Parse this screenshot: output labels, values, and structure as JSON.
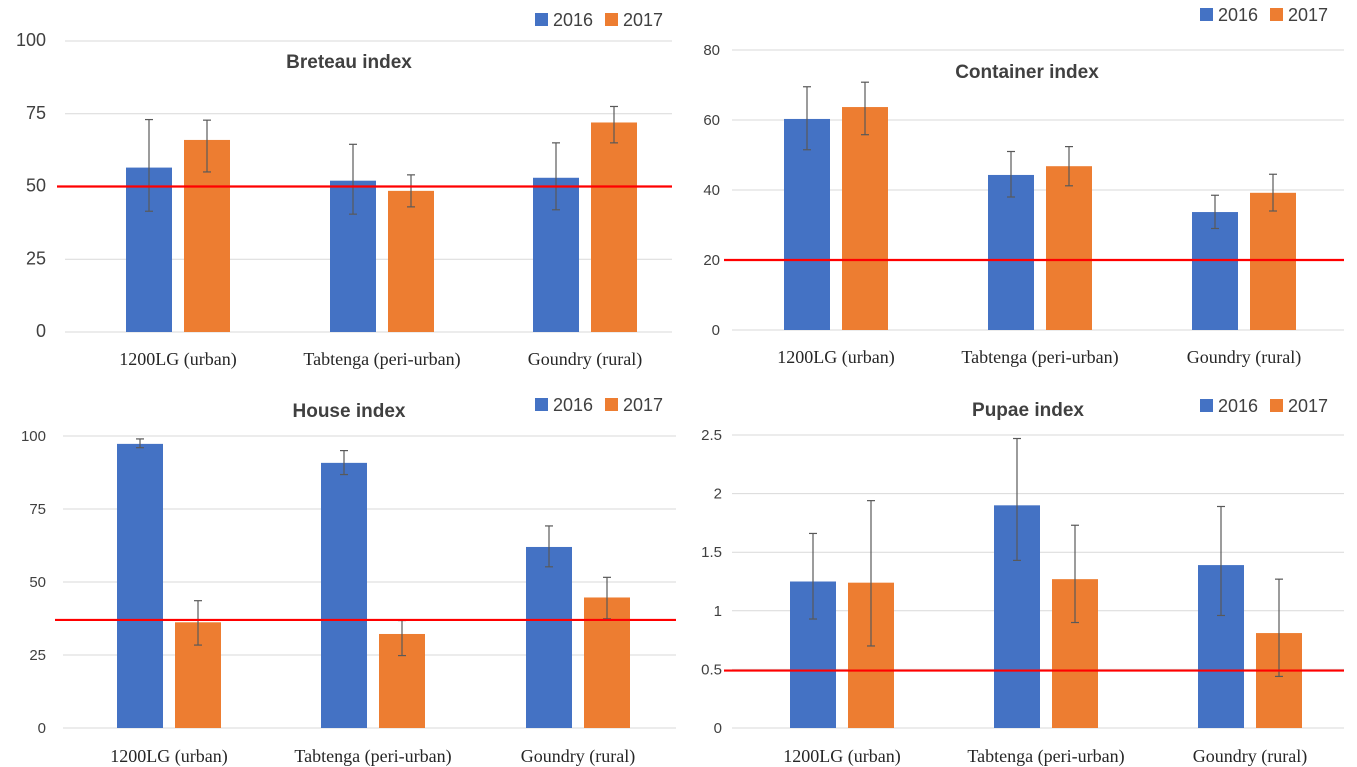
{
  "colors": {
    "2016": "#4472C4",
    "2017": "#ED7D31",
    "threshold": "#FF0000",
    "grid": "#D9D9D9",
    "errorbar": "#595959"
  },
  "legend": {
    "series_2016": "2016",
    "series_2017": "2017"
  },
  "chart_data": [
    {
      "type": "bar",
      "title": "Breteau index",
      "categories": [
        "1200LG (urban)",
        "Tabtenga (peri-urban)",
        "Goundry (rural)"
      ],
      "series": [
        {
          "name": "2016",
          "values": [
            56.5,
            52,
            53
          ],
          "error_low": [
            41.5,
            40.5,
            42
          ],
          "error_high": [
            73,
            64.5,
            65
          ]
        },
        {
          "name": "2017",
          "values": [
            66,
            48.5,
            72
          ],
          "error_low": [
            55,
            43,
            65
          ],
          "error_high": [
            72.8,
            54,
            77.5
          ]
        }
      ],
      "ylim": [
        0,
        100
      ],
      "yticks": [
        "0",
        "25",
        "50",
        "75",
        "100"
      ],
      "threshold": 50,
      "grid": true,
      "legend_position": "top-right"
    },
    {
      "type": "bar",
      "title": "Container index",
      "categories": [
        "1200LG (urban)",
        "Tabtenga (peri-urban)",
        "Goundry (rural)"
      ],
      "series": [
        {
          "name": "2016",
          "values": [
            60.3,
            44.3,
            33.7
          ],
          "error_low": [
            51.5,
            38,
            29
          ],
          "error_high": [
            69.5,
            51,
            38.5
          ]
        },
        {
          "name": "2017",
          "values": [
            63.7,
            46.8,
            39.2
          ],
          "error_low": [
            55.8,
            41.2,
            34
          ],
          "error_high": [
            70.8,
            52.4,
            44.5
          ]
        }
      ],
      "ylim": [
        0,
        80
      ],
      "yticks": [
        "0",
        "20",
        "40",
        "60",
        "80"
      ],
      "threshold": 20,
      "grid": true,
      "legend_position": "top-right"
    },
    {
      "type": "bar",
      "title": "House index",
      "categories": [
        "1200LG (urban)",
        "Tabtenga (peri-urban)",
        "Goundry (rural)"
      ],
      "series": [
        {
          "name": "2016",
          "values": [
            97.3,
            90.8,
            62
          ],
          "error_low": [
            96,
            86.8,
            55.2
          ],
          "error_high": [
            99,
            95,
            69.2
          ]
        },
        {
          "name": "2017",
          "values": [
            36.2,
            32.2,
            44.7
          ],
          "error_low": [
            28.4,
            24.8,
            37.4
          ],
          "error_high": [
            43.6,
            36.8,
            51.6
          ]
        }
      ],
      "ylim": [
        0,
        100
      ],
      "yticks": [
        "0",
        "25",
        "50",
        "75",
        "100"
      ],
      "threshold": 37,
      "grid": true,
      "legend_position": "top-right"
    },
    {
      "type": "bar",
      "title": "Pupae index",
      "categories": [
        "1200LG (urban)",
        "Tabtenga (peri-urban)",
        "Goundry (rural)"
      ],
      "series": [
        {
          "name": "2016",
          "values": [
            1.25,
            1.9,
            1.39
          ],
          "error_low": [
            0.93,
            1.43,
            0.96
          ],
          "error_high": [
            1.66,
            2.47,
            1.89
          ]
        },
        {
          "name": "2017",
          "values": [
            1.24,
            1.27,
            0.81
          ],
          "error_low": [
            0.7,
            0.9,
            0.44
          ],
          "error_high": [
            1.94,
            1.73,
            1.27
          ]
        }
      ],
      "ylim": [
        0,
        2.5
      ],
      "yticks": [
        "0",
        "0.5",
        "1",
        "1.5",
        "2",
        "2.5"
      ],
      "threshold": 0.49,
      "grid": true,
      "legend_position": "top-right"
    }
  ]
}
